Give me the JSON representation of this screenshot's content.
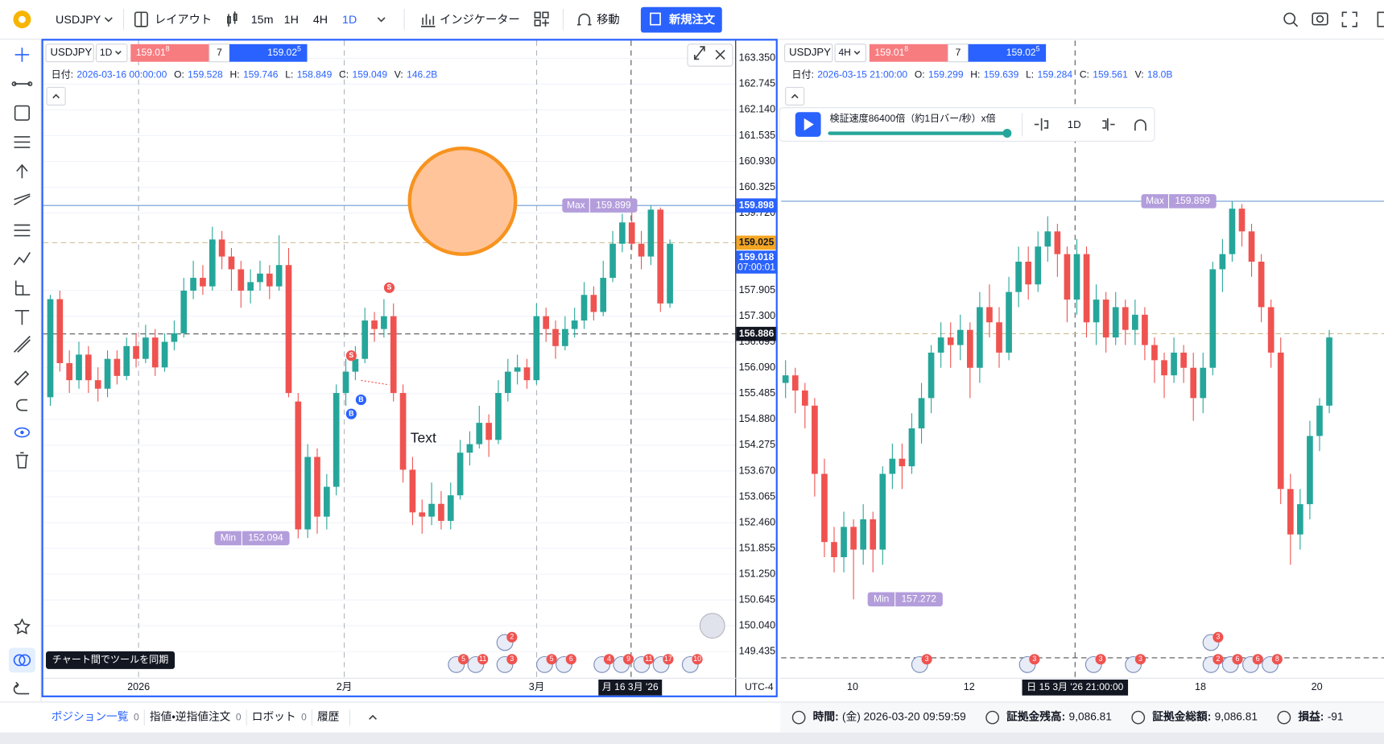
{
  "toolbar": {
    "symbol": "USDJPY",
    "layout": "レイアウト",
    "timeframes": [
      "15m",
      "1H",
      "4H",
      "1D"
    ],
    "active_timeframe": "1D",
    "indicators": "インジケーター",
    "move": "移動",
    "new_order": "新規注文"
  },
  "charts": [
    {
      "symbol": "USDJPY",
      "timeframe": "1D",
      "bid": "159.01",
      "bid_pip": "8",
      "spread": "7",
      "ask": "159.02",
      "ask_pip": "5",
      "info": [
        {
          "label": "日付:",
          "value": "2026-03-16 00:00:00"
        },
        {
          "label": "O:",
          "value": "159.528"
        },
        {
          "label": "H:",
          "value": "159.746"
        },
        {
          "label": "L:",
          "value": "158.849"
        },
        {
          "label": "C:",
          "value": "159.049"
        },
        {
          "label": "V:",
          "value": "146.2B"
        }
      ],
      "ylim": [
        148.82,
        163.764
      ],
      "yticks": [
        {
          "value": 163.35,
          "label": "163.350"
        },
        162.745,
        {
          "value": 162.14,
          "label": "162.140"
        },
        161.535,
        {
          "value": 160.93,
          "label": "160.930"
        },
        160.325,
        {
          "value": 159.72,
          "label": "159.720"
        },
        157.905,
        {
          "value": 157.3,
          "label": "157.300"
        },
        156.695,
        {
          "value": 156.09,
          "label": "156.090"
        },
        155.485,
        {
          "value": 154.88,
          "label": "154.880"
        },
        154.275,
        {
          "value": 153.67,
          "label": "153.670"
        },
        153.065,
        {
          "value": 152.46,
          "label": "152.460"
        },
        151.855,
        {
          "value": 151.25,
          "label": "151.250"
        },
        150.645,
        {
          "value": 150.04,
          "label": "150.040"
        },
        149.435
      ],
      "grid": true,
      "xticks": [
        "2026",
        "2月",
        "3月"
      ],
      "crosshair_label": "月 16 3月 '26",
      "timezone": "UTC-4",
      "max": {
        "label": "Max",
        "value": 159.899
      },
      "min": {
        "label": "Min",
        "value": 152.094
      },
      "tags": [
        {
          "value": 159.898,
          "color": "#2962ff",
          "text_color": "#ffffff",
          "line": "solid",
          "line_color": "#6c9bd2"
        },
        {
          "value": 159.025,
          "color": "#f5a623",
          "text_color": "#131722",
          "line": "dashed",
          "line_color": "#c9bb8e"
        },
        {
          "value": 159.018,
          "color": "#2962ff",
          "text_color": "#ffffff",
          "countdown": "07:00:01"
        },
        {
          "value": 156.886,
          "color": "#131722",
          "text_color": "#ffffff",
          "line": "dashed",
          "line_color": "#555555"
        }
      ],
      "up_color": "#26a69a",
      "down_color": "#ef5350",
      "candles": [
        [
          155.4,
          157.8,
          155.2,
          157.7
        ],
        [
          157.7,
          157.9,
          156.0,
          156.2
        ],
        [
          156.2,
          156.5,
          155.5,
          155.8
        ],
        [
          155.8,
          156.7,
          155.6,
          156.4
        ],
        [
          156.4,
          156.6,
          155.5,
          155.8
        ],
        [
          155.8,
          156.1,
          155.3,
          155.6
        ],
        [
          155.6,
          156.5,
          155.4,
          156.3
        ],
        [
          156.3,
          156.5,
          155.7,
          155.9
        ],
        [
          155.9,
          156.8,
          155.8,
          156.6
        ],
        [
          156.6,
          156.9,
          156.1,
          156.3
        ],
        [
          156.3,
          157.1,
          156.2,
          156.8
        ],
        [
          156.8,
          157.0,
          155.9,
          156.1
        ],
        [
          156.1,
          156.9,
          156.0,
          156.7
        ],
        [
          156.7,
          157.2,
          156.5,
          156.9
        ],
        [
          156.9,
          158.2,
          156.8,
          157.9
        ],
        [
          157.9,
          158.6,
          157.7,
          158.2
        ],
        [
          158.2,
          158.5,
          157.8,
          158.0
        ],
        [
          158.0,
          159.4,
          157.9,
          159.1
        ],
        [
          159.1,
          159.3,
          158.4,
          158.7
        ],
        [
          158.7,
          158.9,
          157.9,
          158.4
        ],
        [
          158.4,
          158.6,
          157.5,
          157.9
        ],
        [
          157.9,
          158.4,
          157.6,
          158.1
        ],
        [
          158.1,
          158.6,
          157.9,
          158.3
        ],
        [
          158.3,
          158.5,
          157.7,
          158.0
        ],
        [
          158.0,
          159.2,
          157.9,
          158.5
        ],
        [
          158.5,
          158.9,
          155.4,
          155.5
        ],
        [
          155.3,
          155.5,
          152.09,
          152.3
        ],
        [
          152.3,
          154.3,
          152.1,
          154.0
        ],
        [
          154.0,
          154.2,
          152.2,
          152.6
        ],
        [
          152.6,
          153.6,
          152.3,
          153.3
        ],
        [
          153.3,
          155.7,
          153.1,
          155.5
        ],
        [
          155.5,
          156.3,
          155.2,
          156.0
        ],
        [
          156.0,
          156.6,
          155.8,
          156.3
        ],
        [
          156.3,
          157.5,
          156.2,
          157.2
        ],
        [
          157.2,
          157.4,
          156.7,
          157.0
        ],
        [
          157.0,
          157.7,
          156.8,
          157.3
        ],
        [
          157.3,
          157.6,
          155.3,
          155.5
        ],
        [
          155.5,
          155.7,
          153.4,
          153.7
        ],
        [
          153.7,
          154.0,
          152.4,
          152.7
        ],
        [
          152.7,
          153.0,
          152.2,
          152.6
        ],
        [
          152.6,
          153.4,
          152.4,
          152.9
        ],
        [
          152.9,
          153.2,
          152.3,
          152.5
        ],
        [
          152.5,
          153.4,
          152.3,
          153.1
        ],
        [
          153.1,
          154.4,
          153.0,
          154.1
        ],
        [
          154.1,
          154.6,
          153.8,
          154.3
        ],
        [
          154.3,
          155.2,
          154.2,
          154.8
        ],
        [
          154.8,
          155.0,
          154.0,
          154.4
        ],
        [
          154.4,
          155.8,
          154.3,
          155.5
        ],
        [
          155.5,
          156.3,
          155.3,
          156.0
        ],
        [
          156.0,
          156.4,
          155.7,
          156.1
        ],
        [
          156.1,
          156.3,
          155.6,
          155.8
        ],
        [
          155.8,
          157.6,
          155.7,
          157.3
        ],
        [
          157.3,
          157.5,
          156.7,
          157.0
        ],
        [
          157.0,
          157.2,
          156.3,
          156.6
        ],
        [
          156.6,
          157.3,
          156.5,
          157.0
        ],
        [
          157.0,
          157.5,
          156.8,
          157.2
        ],
        [
          157.2,
          158.1,
          157.0,
          157.8
        ],
        [
          157.8,
          158.0,
          157.2,
          157.4
        ],
        [
          157.4,
          158.6,
          157.3,
          158.2
        ],
        [
          158.2,
          159.3,
          158.1,
          159.0
        ],
        [
          159.0,
          159.7,
          158.8,
          159.5
        ],
        [
          159.5,
          159.75,
          158.85,
          159.0
        ],
        [
          159.0,
          159.3,
          158.4,
          158.7
        ],
        [
          158.7,
          159.9,
          158.5,
          159.8
        ],
        [
          159.8,
          159.85,
          157.4,
          157.6
        ],
        [
          157.6,
          159.1,
          157.5,
          159.0
        ]
      ],
      "events": [
        "5",
        "11",
        "3",
        "2",
        "5",
        "6",
        "4",
        "9",
        "11",
        "17",
        "10"
      ],
      "trade_markers": [
        "S",
        "S",
        "B",
        "B"
      ],
      "annotation": "Text"
    },
    {
      "symbol": "USDJPY",
      "timeframe": "4H",
      "bid": "159.01",
      "bid_pip": "8",
      "spread": "7",
      "ask": "159.02",
      "ask_pip": "5",
      "info": [
        {
          "label": "日付:",
          "value": "2026-03-15 21:00:00"
        },
        {
          "label": "O:",
          "value": "159.299"
        },
        {
          "label": "H:",
          "value": "159.639"
        },
        {
          "label": "L:",
          "value": "159.284"
        },
        {
          "label": "C:",
          "value": "159.561"
        },
        {
          "label": "V:",
          "value": "18.0B"
        }
      ],
      "ylim": [
        156.754,
        160.959
      ],
      "xticks": [
        "10",
        "12",
        "18",
        "20"
      ],
      "crosshair_label": "日 15 3月 '26 21:00:00",
      "max": {
        "label": "Max",
        "value": 159.899
      },
      "min": {
        "label": "Min",
        "value": 157.272
      },
      "lines": [
        {
          "value": 159.899,
          "line": "solid",
          "line_color": "#6c9bd2"
        },
        {
          "value": 159.025,
          "line": "dashed",
          "line_color": "#c9bb8e"
        },
        {
          "value": 156.886,
          "line": "dashed",
          "line_color": "#555555"
        }
      ],
      "up_color": "#26a69a",
      "down_color": "#ef5350",
      "candles": [
        [
          158.7,
          158.85,
          158.6,
          158.75
        ],
        [
          158.75,
          158.8,
          158.5,
          158.65
        ],
        [
          158.65,
          158.7,
          158.4,
          158.55
        ],
        [
          158.55,
          158.6,
          157.95,
          158.1
        ],
        [
          158.1,
          158.2,
          157.55,
          157.65
        ],
        [
          157.65,
          157.75,
          157.45,
          157.55
        ],
        [
          157.55,
          157.85,
          157.45,
          157.75
        ],
        [
          157.75,
          157.8,
          157.272,
          157.6
        ],
        [
          157.6,
          157.9,
          157.5,
          157.8
        ],
        [
          157.8,
          157.85,
          157.45,
          157.6
        ],
        [
          157.6,
          158.15,
          157.5,
          158.1
        ],
        [
          158.1,
          158.3,
          158.0,
          158.2
        ],
        [
          158.2,
          158.3,
          158.0,
          158.15
        ],
        [
          158.15,
          158.5,
          158.1,
          158.4
        ],
        [
          158.4,
          158.7,
          158.3,
          158.6
        ],
        [
          158.6,
          158.95,
          158.5,
          158.9
        ],
        [
          158.9,
          159.1,
          158.8,
          159.0
        ],
        [
          159.0,
          159.1,
          158.8,
          158.95
        ],
        [
          158.95,
          159.15,
          158.85,
          159.05
        ],
        [
          159.05,
          159.1,
          158.6,
          158.8
        ],
        [
          158.8,
          159.3,
          158.7,
          159.2
        ],
        [
          159.2,
          159.35,
          159.0,
          159.1
        ],
        [
          159.1,
          159.2,
          158.8,
          158.9
        ],
        [
          158.9,
          159.4,
          158.85,
          159.3
        ],
        [
          159.3,
          159.6,
          159.2,
          159.5
        ],
        [
          159.5,
          159.6,
          159.25,
          159.35
        ],
        [
          159.35,
          159.7,
          159.3,
          159.6
        ],
        [
          159.6,
          159.8,
          159.5,
          159.7
        ],
        [
          159.7,
          159.75,
          159.4,
          159.55
        ],
        [
          159.55,
          159.6,
          159.1,
          159.25
        ],
        [
          159.25,
          159.65,
          159.15,
          159.55
        ],
        [
          159.55,
          159.6,
          159.0,
          159.1
        ],
        [
          159.1,
          159.35,
          158.95,
          159.25
        ],
        [
          159.25,
          159.3,
          158.9,
          159.0
        ],
        [
          159.0,
          159.3,
          158.95,
          159.2
        ],
        [
          159.2,
          159.25,
          158.95,
          159.05
        ],
        [
          159.05,
          159.25,
          158.95,
          159.15
        ],
        [
          159.15,
          159.2,
          158.85,
          158.95
        ],
        [
          158.95,
          159.0,
          158.7,
          158.85
        ],
        [
          158.85,
          158.9,
          158.6,
          158.75
        ],
        [
          158.75,
          159.0,
          158.7,
          158.9
        ],
        [
          158.9,
          158.95,
          158.7,
          158.8
        ],
        [
          158.8,
          158.9,
          158.45,
          158.6
        ],
        [
          158.6,
          158.9,
          158.5,
          158.8
        ],
        [
          158.8,
          159.5,
          158.75,
          159.45
        ],
        [
          159.45,
          159.65,
          159.3,
          159.55
        ],
        [
          159.55,
          159.899,
          159.5,
          159.85
        ],
        [
          159.85,
          159.88,
          159.6,
          159.7
        ],
        [
          159.7,
          159.75,
          159.4,
          159.5
        ],
        [
          159.5,
          159.55,
          159.1,
          159.2
        ],
        [
          159.2,
          159.25,
          158.8,
          158.9
        ],
        [
          158.9,
          159.0,
          157.9,
          158.0
        ],
        [
          158.0,
          158.1,
          157.5,
          157.7
        ],
        [
          157.7,
          158.0,
          157.6,
          157.9
        ],
        [
          157.9,
          158.45,
          157.8,
          158.35
        ],
        [
          158.35,
          158.6,
          158.25,
          158.55
        ],
        [
          158.55,
          159.05,
          158.5,
          159.0
        ]
      ],
      "events": [
        "3",
        "3",
        "3",
        "3",
        "3",
        "2",
        "6",
        "6",
        "8"
      ]
    }
  ],
  "playback": {
    "speed": "検証速度86400倍（約1日バー/秒）x倍",
    "timeframe": "1D"
  },
  "tooltip": "チャート間でツールを同期",
  "bottom": {
    "tabs": [
      {
        "label": "ポジション一覧",
        "count": "0"
      },
      {
        "label": "指値・逆指値注文",
        "count": "0"
      },
      {
        "label": "ロボット",
        "count": "0"
      },
      {
        "label": "履歴"
      }
    ],
    "status": [
      {
        "label": "時間:",
        "value": "(金) 2026-03-20 09:59:59"
      },
      {
        "label": "証拠金残高:",
        "value": "9,086.81"
      },
      {
        "label": "証拠金総額:",
        "value": "9,086.81"
      },
      {
        "label": "損益:",
        "value": "-91"
      }
    ]
  }
}
